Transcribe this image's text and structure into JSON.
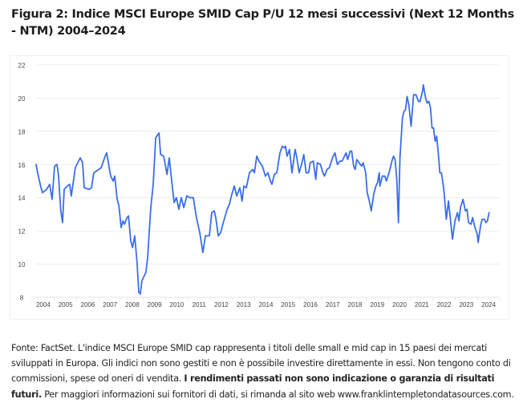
{
  "title": "Figura 2: Indice MSCI Europe SMID Cap P/U 12 mesi successivi (Next 12 Months - NTM) 2004–2024",
  "footnote": {
    "part1": "Fonte: FactSet. L'indice MSCI Europe SMID cap rappresenta i titoli delle small e mid cap in 15 paesi dei mercati sviluppati in Europa. Gli indici non sono gestiti e non è possibile investire direttamente in essi. Non tengono conto di commissioni, spese od oneri di vendita. ",
    "bold": "I rendimenti passati non sono indicazione o garanzia di risultati futuri.",
    "part2": " Per maggiori informazioni sui fornitori di dati, si rimanda al sito web www.franklintempletondatasources.com."
  },
  "colors": {
    "line": "#3a6ee8",
    "grid": "#ebebeb",
    "tick_text": "#444444"
  },
  "chart_data": {
    "type": "line",
    "title": "Figura 2: Indice MSCI Europe SMID Cap P/U 12 mesi successivi (Next 12 Months - NTM) 2004–2024",
    "xlabel": "",
    "ylabel": "",
    "xlim": [
      2004.0,
      2025.0
    ],
    "ylim": [
      8,
      22
    ],
    "yticks": [
      8,
      10,
      12,
      14,
      16,
      18,
      20,
      22
    ],
    "xtick_labels": [
      "2004",
      "2005",
      "2006",
      "2007",
      "2008",
      "2009",
      "2010",
      "2011",
      "2012",
      "2013",
      "2014",
      "2015",
      "2016",
      "2017",
      "2018",
      "2019",
      "2020",
      "2021",
      "2022",
      "2023",
      "2024"
    ],
    "grid": true,
    "legend": "none",
    "series": [
      {
        "name": "MSCI Europe SMID Cap NTM P/E",
        "points": [
          [
            2004.18,
            16.0
          ],
          [
            2004.25,
            15.5
          ],
          [
            2004.4,
            14.6
          ],
          [
            2004.47,
            14.3
          ],
          [
            2004.65,
            14.5
          ],
          [
            2004.79,
            14.8
          ],
          [
            2004.9,
            13.9
          ],
          [
            2005.01,
            15.9
          ],
          [
            2005.12,
            16.0
          ],
          [
            2005.19,
            15.3
          ],
          [
            2005.29,
            13.2
          ],
          [
            2005.37,
            12.5
          ],
          [
            2005.44,
            14.5
          ],
          [
            2005.58,
            14.7
          ],
          [
            2005.69,
            14.8
          ],
          [
            2005.76,
            14.1
          ],
          [
            2005.94,
            15.8
          ],
          [
            2006.16,
            16.4
          ],
          [
            2006.27,
            16.1
          ],
          [
            2006.34,
            14.6
          ],
          [
            2006.56,
            14.5
          ],
          [
            2006.67,
            14.6
          ],
          [
            2006.77,
            15.5
          ],
          [
            2006.88,
            15.6
          ],
          [
            2007.1,
            15.8
          ],
          [
            2007.28,
            16.5
          ],
          [
            2007.35,
            16.7
          ],
          [
            2007.53,
            15.3
          ],
          [
            2007.64,
            15.0
          ],
          [
            2007.71,
            15.3
          ],
          [
            2007.82,
            13.9
          ],
          [
            2007.9,
            13.5
          ],
          [
            2008.0,
            12.2
          ],
          [
            2008.08,
            12.6
          ],
          [
            2008.15,
            12.4
          ],
          [
            2008.26,
            12.8
          ],
          [
            2008.33,
            12.9
          ],
          [
            2008.43,
            11.4
          ],
          [
            2008.51,
            11.0
          ],
          [
            2008.61,
            11.7
          ],
          [
            2008.72,
            10.0
          ],
          [
            2008.79,
            8.3
          ],
          [
            2008.86,
            8.2
          ],
          [
            2008.93,
            9.0
          ],
          [
            2009.04,
            9.3
          ],
          [
            2009.11,
            9.5
          ],
          [
            2009.19,
            10.4
          ],
          [
            2009.26,
            11.9
          ],
          [
            2009.33,
            13.4
          ],
          [
            2009.44,
            14.8
          ],
          [
            2009.55,
            17.6
          ],
          [
            2009.7,
            17.9
          ],
          [
            2009.77,
            16.6
          ],
          [
            2009.91,
            16.5
          ],
          [
            2010.06,
            15.4
          ],
          [
            2010.16,
            16.4
          ],
          [
            2010.27,
            15.0
          ],
          [
            2010.38,
            13.7
          ],
          [
            2010.48,
            14.0
          ],
          [
            2010.59,
            13.3
          ],
          [
            2010.7,
            14.0
          ],
          [
            2010.81,
            13.4
          ],
          [
            2010.95,
            14.1
          ],
          [
            2011.09,
            14.0
          ],
          [
            2011.24,
            14.0
          ],
          [
            2011.38,
            12.8
          ],
          [
            2011.53,
            11.9
          ],
          [
            2011.67,
            10.7
          ],
          [
            2011.78,
            11.7
          ],
          [
            2011.96,
            11.7
          ],
          [
            2012.07,
            13.1
          ],
          [
            2012.18,
            13.2
          ],
          [
            2012.25,
            12.8
          ],
          [
            2012.36,
            11.7
          ],
          [
            2012.47,
            11.9
          ],
          [
            2012.61,
            12.6
          ],
          [
            2012.76,
            13.3
          ],
          [
            2012.86,
            13.6
          ],
          [
            2012.97,
            14.2
          ],
          [
            2013.08,
            14.7
          ],
          [
            2013.19,
            14.1
          ],
          [
            2013.33,
            14.6
          ],
          [
            2013.43,
            13.8
          ],
          [
            2013.51,
            14.7
          ],
          [
            2013.62,
            14.6
          ],
          [
            2013.76,
            15.5
          ],
          [
            2013.91,
            15.7
          ],
          [
            2013.98,
            15.5
          ],
          [
            2014.09,
            16.5
          ],
          [
            2014.19,
            16.2
          ],
          [
            2014.34,
            15.9
          ],
          [
            2014.48,
            15.3
          ],
          [
            2014.59,
            15.5
          ],
          [
            2014.7,
            15.0
          ],
          [
            2014.77,
            14.8
          ],
          [
            2014.88,
            15.4
          ],
          [
            2014.99,
            15.5
          ],
          [
            2015.13,
            16.7
          ],
          [
            2015.24,
            17.1
          ],
          [
            2015.35,
            17.0
          ],
          [
            2015.38,
            17.1
          ],
          [
            2015.45,
            16.5
          ],
          [
            2015.56,
            16.9
          ],
          [
            2015.67,
            15.5
          ],
          [
            2015.81,
            16.9
          ],
          [
            2015.88,
            16.5
          ],
          [
            2015.99,
            15.5
          ],
          [
            2016.1,
            16.0
          ],
          [
            2016.2,
            16.6
          ],
          [
            2016.31,
            15.5
          ],
          [
            2016.42,
            15.5
          ],
          [
            2016.49,
            16.1
          ],
          [
            2016.63,
            16.2
          ],
          [
            2016.74,
            15.1
          ],
          [
            2016.81,
            16.1
          ],
          [
            2016.95,
            16.0
          ],
          [
            2017.06,
            15.5
          ],
          [
            2017.13,
            15.3
          ],
          [
            2017.24,
            15.7
          ],
          [
            2017.35,
            15.8
          ],
          [
            2017.49,
            16.4
          ],
          [
            2017.6,
            16.7
          ],
          [
            2017.71,
            16.0
          ],
          [
            2017.82,
            16.2
          ],
          [
            2017.92,
            16.2
          ],
          [
            2018.03,
            16.5
          ],
          [
            2018.1,
            16.7
          ],
          [
            2018.17,
            16.3
          ],
          [
            2018.28,
            16.8
          ],
          [
            2018.35,
            16.8
          ],
          [
            2018.44,
            15.9
          ],
          [
            2018.51,
            15.7
          ],
          [
            2018.58,
            16.3
          ],
          [
            2018.69,
            16.1
          ],
          [
            2018.8,
            15.9
          ],
          [
            2018.87,
            16.1
          ],
          [
            2018.98,
            15.5
          ],
          [
            2019.05,
            14.3
          ],
          [
            2019.16,
            13.7
          ],
          [
            2019.23,
            13.2
          ],
          [
            2019.34,
            14.2
          ],
          [
            2019.44,
            14.7
          ],
          [
            2019.51,
            14.9
          ],
          [
            2019.59,
            15.5
          ],
          [
            2019.62,
            14.7
          ],
          [
            2019.73,
            15.3
          ],
          [
            2019.84,
            15.3
          ],
          [
            2019.91,
            15.0
          ],
          [
            2020.05,
            15.6
          ],
          [
            2020.16,
            16.2
          ],
          [
            2020.23,
            16.5
          ],
          [
            2020.3,
            16.3
          ],
          [
            2020.38,
            15.1
          ],
          [
            2020.45,
            12.5
          ],
          [
            2020.52,
            16.4
          ],
          [
            2020.63,
            18.8
          ],
          [
            2020.7,
            19.2
          ],
          [
            2020.77,
            19.3
          ],
          [
            2020.84,
            20.1
          ],
          [
            2020.92,
            19.6
          ],
          [
            2021.02,
            18.3
          ],
          [
            2021.13,
            20.2
          ],
          [
            2021.24,
            20.2
          ],
          [
            2021.35,
            19.8
          ],
          [
            2021.42,
            19.8
          ],
          [
            2021.53,
            20.4
          ],
          [
            2021.57,
            20.8
          ],
          [
            2021.67,
            20.0
          ],
          [
            2021.74,
            19.7
          ],
          [
            2021.82,
            19.8
          ],
          [
            2021.89,
            19.4
          ],
          [
            2021.96,
            18.2
          ],
          [
            2022.03,
            18.2
          ],
          [
            2022.1,
            17.4
          ],
          [
            2022.17,
            17.7
          ],
          [
            2022.24,
            16.7
          ],
          [
            2022.31,
            15.5
          ],
          [
            2022.38,
            15.5
          ],
          [
            2022.49,
            14.5
          ],
          [
            2022.6,
            12.7
          ],
          [
            2022.7,
            13.8
          ],
          [
            2022.77,
            12.9
          ],
          [
            2022.88,
            11.5
          ],
          [
            2022.99,
            12.6
          ],
          [
            2023.1,
            13.1
          ],
          [
            2023.17,
            12.6
          ],
          [
            2023.24,
            13.4
          ],
          [
            2023.35,
            13.9
          ],
          [
            2023.46,
            13.2
          ],
          [
            2023.53,
            13.3
          ],
          [
            2023.6,
            12.5
          ],
          [
            2023.71,
            12.4
          ],
          [
            2023.78,
            12.8
          ],
          [
            2023.89,
            12.2
          ],
          [
            2023.99,
            11.8
          ],
          [
            2024.03,
            11.3
          ],
          [
            2024.14,
            12.3
          ],
          [
            2024.21,
            12.7
          ],
          [
            2024.31,
            12.7
          ],
          [
            2024.38,
            12.5
          ],
          [
            2024.45,
            12.6
          ],
          [
            2024.52,
            13.1
          ]
        ]
      }
    ]
  }
}
